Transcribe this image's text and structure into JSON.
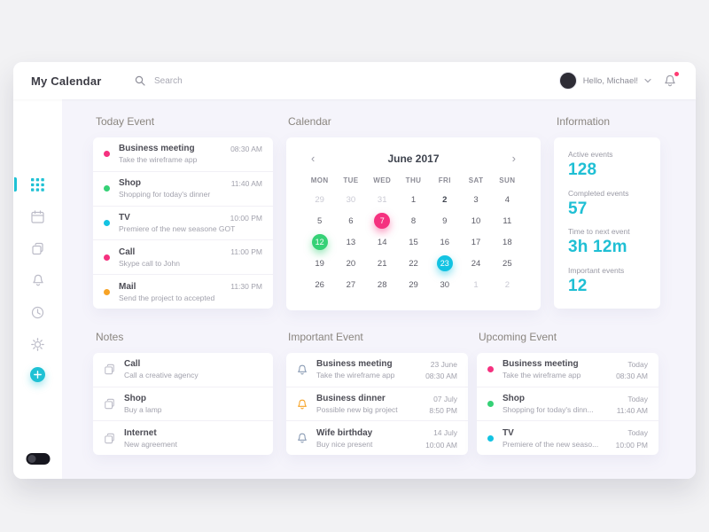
{
  "colors": {
    "accent": "#1fbfd4",
    "pink": "#f5317f",
    "green": "#35d176",
    "cyan": "#12c3e2",
    "orange": "#f7a325",
    "bell_blue": "#8a9bb4",
    "notification_dot": "#ff3b72"
  },
  "topbar": {
    "title": "My Calendar",
    "search_placeholder": "Search",
    "greeting": "Hello, Michael!"
  },
  "sidebar": {
    "items": [
      "apps",
      "calendar",
      "notes",
      "notifications",
      "history",
      "settings",
      "add"
    ],
    "active": "apps"
  },
  "sections": {
    "today": {
      "heading": "Today Event",
      "events": [
        {
          "title": "Business meeting",
          "desc": "Take the wireframe app",
          "time": "08:30 AM",
          "color": "#f5317f"
        },
        {
          "title": "Shop",
          "desc": "Shopping for today's dinner",
          "time": "11:40 AM",
          "color": "#35d176"
        },
        {
          "title": "TV",
          "desc": "Premiere of the new seasone GOT",
          "time": "10:00 PM",
          "color": "#12c3e2"
        },
        {
          "title": "Call",
          "desc": "Skype call to John",
          "time": "11:00 PM",
          "color": "#f5317f"
        },
        {
          "title": "Mail",
          "desc": "Send the project to accepted",
          "time": "11:30 PM",
          "color": "#f7a325"
        }
      ]
    },
    "calendar": {
      "heading": "Calendar",
      "month": "June 2017",
      "prev": "‹",
      "next": "›",
      "day_names": [
        "MON",
        "TUE",
        "WED",
        "THU",
        "FRI",
        "SAT",
        "SUN"
      ],
      "weeks": [
        [
          {
            "t": "29",
            "m": true
          },
          {
            "t": "30",
            "m": true
          },
          {
            "t": "31",
            "m": true
          },
          {
            "t": "1"
          },
          {
            "t": "2",
            "b": true
          },
          {
            "t": "3"
          },
          {
            "t": "4"
          }
        ],
        [
          {
            "t": "5"
          },
          {
            "t": "6"
          },
          {
            "t": "7",
            "h": "#f5317f"
          },
          {
            "t": "8"
          },
          {
            "t": "9"
          },
          {
            "t": "10"
          },
          {
            "t": "11"
          }
        ],
        [
          {
            "t": "12",
            "h": "#35d176"
          },
          {
            "t": "13"
          },
          {
            "t": "14"
          },
          {
            "t": "15"
          },
          {
            "t": "16"
          },
          {
            "t": "17"
          },
          {
            "t": "18"
          }
        ],
        [
          {
            "t": "19"
          },
          {
            "t": "20"
          },
          {
            "t": "21"
          },
          {
            "t": "22"
          },
          {
            "t": "23",
            "h": "#12c3e2"
          },
          {
            "t": "24"
          },
          {
            "t": "25"
          }
        ],
        [
          {
            "t": "26"
          },
          {
            "t": "27"
          },
          {
            "t": "28"
          },
          {
            "t": "29"
          },
          {
            "t": "30"
          },
          {
            "t": "1",
            "m": true
          },
          {
            "t": "2",
            "m": true
          }
        ]
      ]
    },
    "information": {
      "heading": "Information",
      "stats": [
        {
          "label": "Active events",
          "value": "128"
        },
        {
          "label": "Completed events",
          "value": "57"
        },
        {
          "label": "Time to next event",
          "value": "3h 12m"
        },
        {
          "label": "Important events",
          "value": "12"
        }
      ]
    },
    "notes": {
      "heading": "Notes",
      "items": [
        {
          "title": "Call",
          "desc": "Call a creative agency"
        },
        {
          "title": "Shop",
          "desc": "Buy a lamp"
        },
        {
          "title": "Internet",
          "desc": "New agreement"
        }
      ]
    },
    "important": {
      "heading": "Important Event",
      "items": [
        {
          "title": "Business meeting",
          "desc": "Take the wireframe app",
          "date": "23 June",
          "time": "08:30 AM",
          "color": "#8a9bb4"
        },
        {
          "title": "Business dinner",
          "desc": "Possible new big project",
          "date": "07 July",
          "time": "8:50 PM",
          "color": "#f7a325"
        },
        {
          "title": "Wife birthday",
          "desc": "Buy nice present",
          "date": "14 July",
          "time": "10:00 AM",
          "color": "#8a9bb4"
        }
      ]
    },
    "upcoming": {
      "heading": "Upcoming Event",
      "items": [
        {
          "title": "Business meeting",
          "desc": "Take the wireframe app",
          "date": "Today",
          "time": "08:30 AM",
          "color": "#f5317f"
        },
        {
          "title": "Shop",
          "desc": "Shopping for today's dinn...",
          "date": "Today",
          "time": "11:40 AM",
          "color": "#35d176"
        },
        {
          "title": "TV",
          "desc": "Premiere of the new seaso...",
          "date": "Today",
          "time": "10:00 PM",
          "color": "#12c3e2"
        }
      ]
    }
  }
}
